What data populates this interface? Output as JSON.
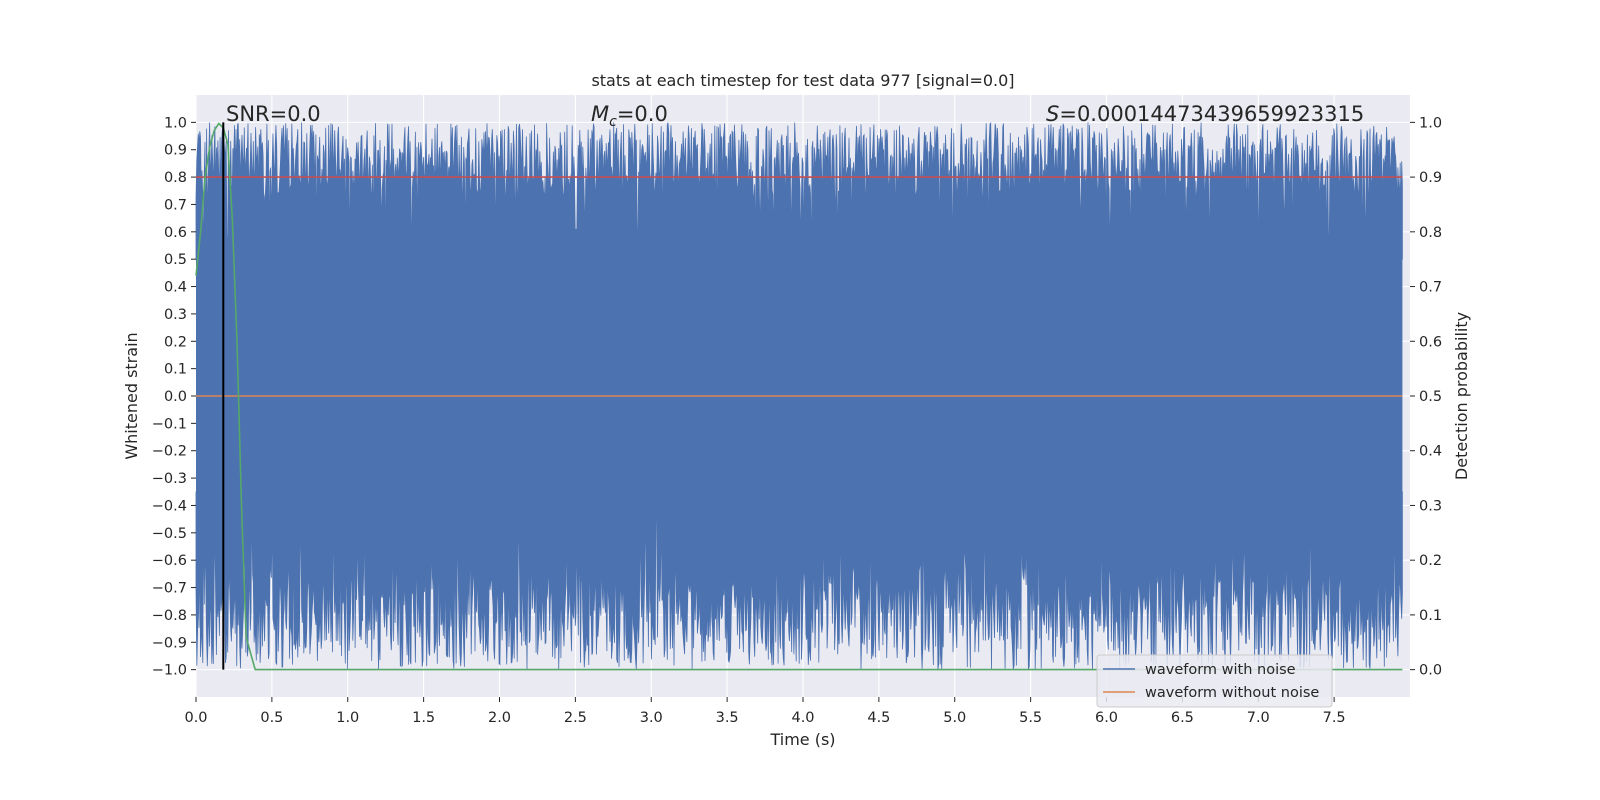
{
  "chart_data": {
    "type": "line",
    "title": "stats at each timestep for test data 977 [signal=0.0]",
    "xlabel": "Time (s)",
    "ylabel": "Whitened strain",
    "ylabel_right": "Detection probability",
    "xlim": [
      0.0,
      8.0
    ],
    "ylim": [
      -1.1,
      1.1
    ],
    "ylim_right": [
      -0.05,
      1.05
    ],
    "grid": true,
    "x_ticks": [
      "0.0",
      "0.5",
      "1.0",
      "1.5",
      "2.0",
      "2.5",
      "3.0",
      "3.5",
      "4.0",
      "4.5",
      "5.0",
      "5.5",
      "6.0",
      "6.5",
      "7.0",
      "7.5"
    ],
    "y_ticks": [
      "1.0",
      "0.9",
      "0.8",
      "0.7",
      "0.6",
      "0.5",
      "0.4",
      "0.3",
      "0.2",
      "0.1",
      "0.0",
      "−0.1",
      "−0.2",
      "−0.3",
      "−0.4",
      "−0.5",
      "−0.6",
      "−0.7",
      "−0.8",
      "−0.9",
      "−1.0"
    ],
    "y_right_ticks": [
      "1.0",
      "0.9",
      "0.8",
      "0.7",
      "0.6",
      "0.5",
      "0.4",
      "0.3",
      "0.2",
      "0.1",
      "0.0"
    ],
    "annotations": {
      "snr": "SNR=0.0",
      "mc_symbol": "M",
      "mc_sub": "c",
      "mc_value": "=0.0",
      "s_symbol": "S",
      "s_value": "=0.00014473439659923315"
    },
    "series": [
      {
        "name": "waveform with noise",
        "color": "#4c72b0",
        "axis": "left",
        "description": "dense noise filling range -1 to 1 over 0-8 s",
        "upper_range": [
          0.5,
          1.0
        ],
        "lower_range": [
          -1.0,
          -0.35
        ]
      },
      {
        "name": "waveform without noise",
        "color": "#dd8452",
        "axis": "left",
        "x": [
          0.0,
          7.95
        ],
        "y": [
          0.0,
          0.0
        ]
      },
      {
        "name": "detection threshold",
        "color": "#c44e52",
        "axis": "right",
        "x": [
          0.0,
          7.95
        ],
        "y": [
          0.9,
          0.9
        ]
      },
      {
        "name": "detection probability",
        "color": "#55a868",
        "axis": "right",
        "x": [
          0.0,
          0.03,
          0.06,
          0.09,
          0.12,
          0.15,
          0.18,
          0.21,
          0.24,
          0.27,
          0.3,
          0.33,
          0.36,
          0.39,
          7.95
        ],
        "y": [
          0.72,
          0.8,
          0.9,
          0.955,
          0.985,
          0.998,
          0.99,
          0.96,
          0.82,
          0.6,
          0.3,
          0.06,
          0.03,
          0.0,
          0.0
        ]
      },
      {
        "name": "marker line",
        "color": "#000000",
        "axis": "left",
        "x": [
          0.18,
          0.18
        ],
        "y": [
          -1.0,
          1.0
        ]
      }
    ],
    "legend": {
      "placement": "lower-right",
      "entries": [
        {
          "label": "waveform with noise",
          "color": "#4c72b0"
        },
        {
          "label": "waveform without noise",
          "color": "#dd8452"
        }
      ]
    },
    "colors": {
      "axes_bg": "#eaeaf2",
      "grid": "#ffffff",
      "text": "#262626"
    }
  }
}
